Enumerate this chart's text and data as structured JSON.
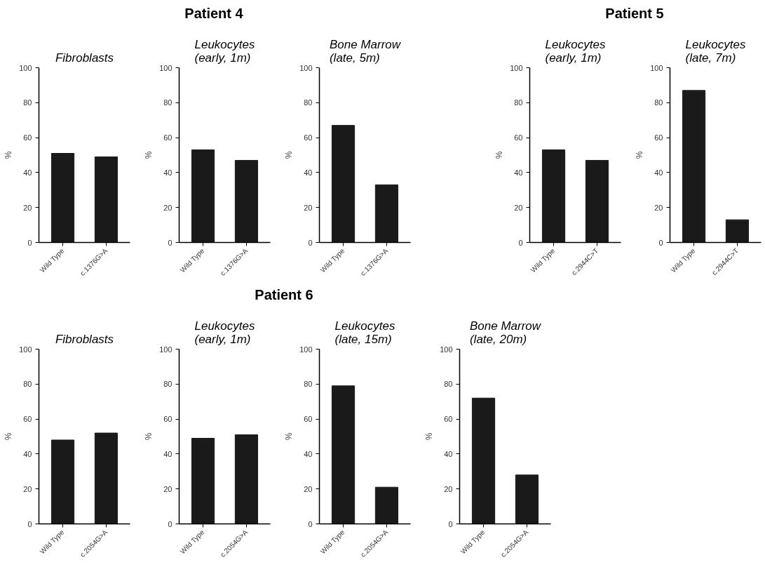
{
  "chart_data": [
    {
      "type": "bar",
      "annotations": [
        "Patient 4"
      ],
      "title": "Fibroblasts",
      "ylabel": "%",
      "categories": [
        "Wild Type",
        "c.1376G>A"
      ],
      "values": [
        51,
        49
      ],
      "color": "#1a1a1a",
      "ylim": [
        0,
        100
      ],
      "yticks": [
        0,
        20,
        40,
        60,
        80,
        100
      ],
      "grid": false
    },
    {
      "type": "bar",
      "title": "Leukocytes\n(early, 1m)",
      "ylabel": "%",
      "categories": [
        "Wild Type",
        "c.1376G>A"
      ],
      "values": [
        53,
        47
      ],
      "color": "#1a1a1a",
      "ylim": [
        0,
        100
      ],
      "yticks": [
        0,
        20,
        40,
        60,
        80,
        100
      ],
      "grid": false
    },
    {
      "type": "bar",
      "title": "Bone Marrow\n(late, 5m)",
      "ylabel": "%",
      "categories": [
        "Wild Type",
        "c.1376G>A"
      ],
      "values": [
        67,
        33
      ],
      "color": "#1a1a1a",
      "ylim": [
        0,
        100
      ],
      "yticks": [
        0,
        20,
        40,
        60,
        80,
        100
      ],
      "grid": false
    },
    {
      "type": "bar",
      "annotations": [
        "Patient 5"
      ],
      "title": "Leukocytes\n(early, 1m)",
      "ylabel": "%",
      "categories": [
        "Wild Type",
        "c.2944C>T"
      ],
      "values": [
        53,
        47
      ],
      "color": "#1a1a1a",
      "ylim": [
        0,
        100
      ],
      "yticks": [
        0,
        20,
        40,
        60,
        80,
        100
      ],
      "grid": false
    },
    {
      "type": "bar",
      "title": "Leukocytes\n(late, 7m)",
      "ylabel": "%",
      "categories": [
        "Wild Type",
        "c.2944C>T"
      ],
      "values": [
        87,
        13
      ],
      "color": "#1a1a1a",
      "ylim": [
        0,
        100
      ],
      "yticks": [
        0,
        20,
        40,
        60,
        80,
        100
      ],
      "grid": false
    },
    {
      "type": "bar",
      "annotations": [
        "Patient 6"
      ],
      "title": "Fibroblasts",
      "ylabel": "%",
      "categories": [
        "Wild Type",
        "c.2054G>A"
      ],
      "values": [
        48,
        52
      ],
      "color": "#1a1a1a",
      "ylim": [
        0,
        100
      ],
      "yticks": [
        0,
        20,
        40,
        60,
        80,
        100
      ],
      "grid": false
    },
    {
      "type": "bar",
      "title": "Leukocytes\n(early, 1m)",
      "ylabel": "%",
      "categories": [
        "Wild Type",
        "c.2054G>A"
      ],
      "values": [
        49,
        51
      ],
      "color": "#1a1a1a",
      "ylim": [
        0,
        100
      ],
      "yticks": [
        0,
        20,
        40,
        60,
        80,
        100
      ],
      "grid": false
    },
    {
      "type": "bar",
      "title": "Leukocytes\n(late, 15m)",
      "ylabel": "%",
      "categories": [
        "Wild Type",
        "c.2054G>A"
      ],
      "values": [
        79,
        21
      ],
      "color": "#1a1a1a",
      "ylim": [
        0,
        100
      ],
      "yticks": [
        0,
        20,
        40,
        60,
        80,
        100
      ],
      "grid": false
    },
    {
      "type": "bar",
      "title": "Bone Marrow\n(late, 20m)",
      "ylabel": "%",
      "categories": [
        "Wild Type",
        "c.2054G>A"
      ],
      "values": [
        72,
        28
      ],
      "color": "#1a1a1a",
      "ylim": [
        0,
        100
      ],
      "yticks": [
        0,
        20,
        40,
        60,
        80,
        100
      ],
      "grid": false
    }
  ]
}
